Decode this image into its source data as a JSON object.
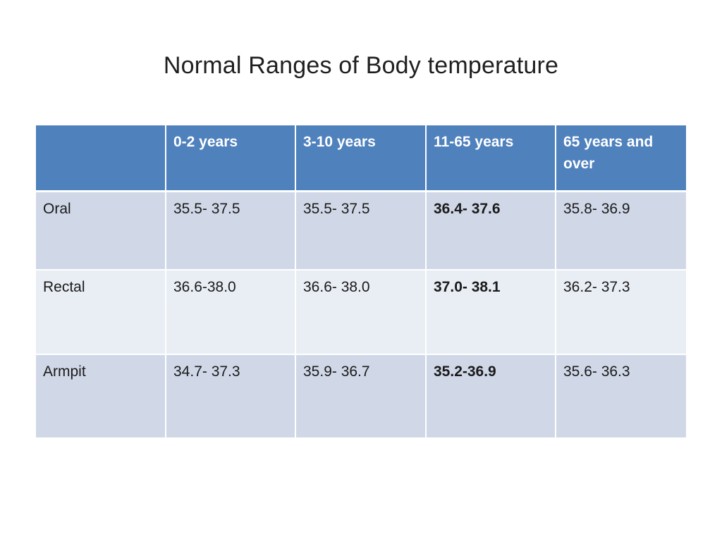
{
  "title": "Normal Ranges of Body temperature",
  "table": {
    "headers": [
      "",
      "0-2 years",
      "3-10 years",
      "11-65 years",
      "65 years and over"
    ],
    "rows": [
      {
        "label": "Oral",
        "values": [
          "35.5- 37.5",
          "35.5- 37.5",
          "36.4- 37.6",
          "35.8- 36.9"
        ]
      },
      {
        "label": "Rectal",
        "values": [
          "36.6-38.0",
          "36.6- 38.0",
          "37.0- 38.1",
          "36.2- 37.3"
        ]
      },
      {
        "label": "Armpit",
        "values": [
          "34.7- 37.3",
          "35.9- 36.7",
          "35.2-36.9",
          "35.6- 36.3"
        ]
      }
    ],
    "bold_column": "11-65 years",
    "colors": {
      "header_bg": "#4f81bd",
      "row_band_1": "#d0d8e8",
      "row_band_2": "#e9edf4"
    }
  }
}
